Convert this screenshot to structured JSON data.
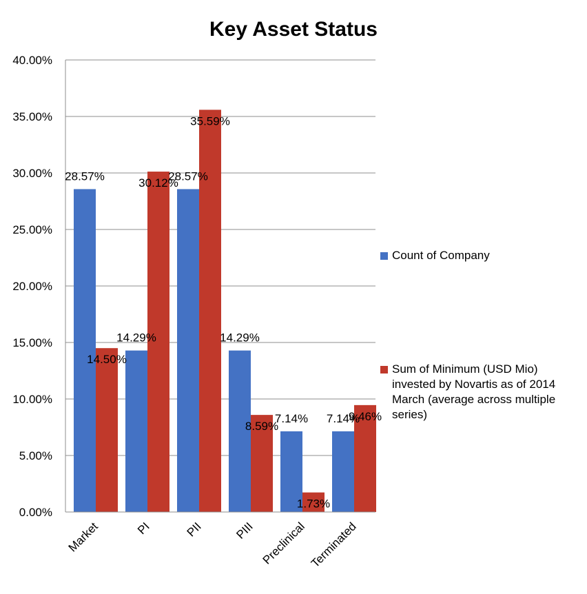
{
  "chart_data": {
    "type": "bar",
    "title": "Key Asset Status",
    "categories": [
      "Market",
      "PI",
      "PII",
      "PIII",
      "Preclinical",
      "Terminated"
    ],
    "series": [
      {
        "name": "Count of Company",
        "color": "#4472c4",
        "values": [
          28.57,
          14.29,
          28.57,
          14.29,
          7.14,
          7.14
        ],
        "labels": [
          "28.57%",
          "14.29%",
          "28.57%",
          "14.29%",
          "7.14%",
          "7.14%"
        ]
      },
      {
        "name": "Sum of Minimum (USD Mio) invested by Novartis as of 2014 March (average across multiple series)",
        "color": "#c0392b",
        "values": [
          14.5,
          30.12,
          35.59,
          8.59,
          1.73,
          9.46
        ],
        "labels": [
          "14.50%",
          "30.12%",
          "35.59%",
          "8.59%",
          "1.73%",
          "9.46%"
        ]
      }
    ],
    "ylim": [
      0,
      40
    ],
    "yticks": [
      "0.00%",
      "5.00%",
      "10.00%",
      "15.00%",
      "20.00%",
      "25.00%",
      "30.00%",
      "35.00%",
      "40.00%"
    ],
    "grid": true,
    "legend_position": "right"
  }
}
